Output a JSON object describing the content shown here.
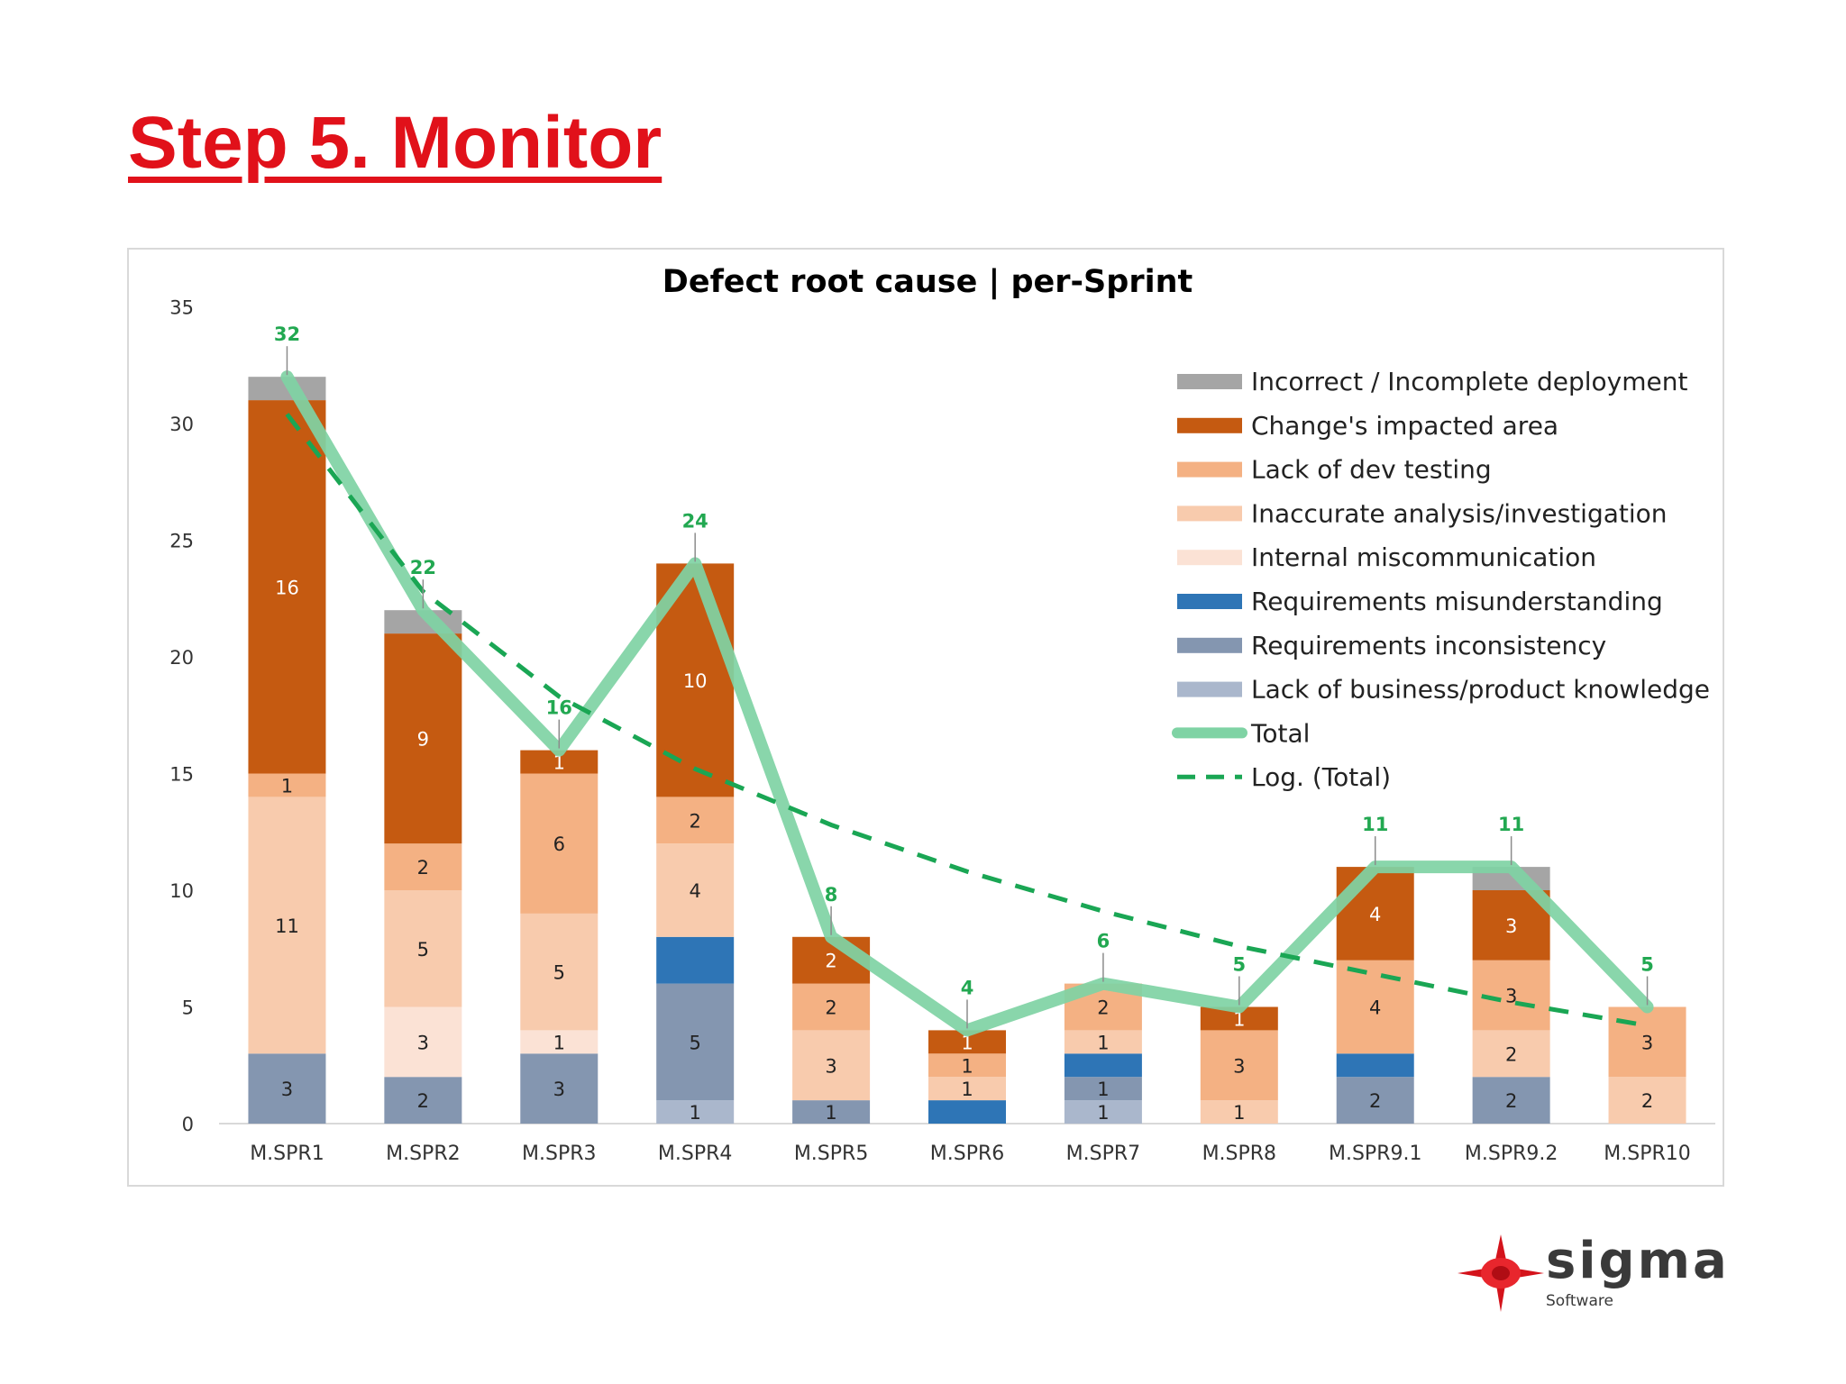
{
  "slide": {
    "title": "Step 5. Monitor"
  },
  "logo": {
    "word": "sigma",
    "sub": "Software"
  },
  "colors": {
    "title": "#e1111a",
    "total_line": "#7fd3a4",
    "trend_line": "#1aa654",
    "total_label": "#22a851"
  },
  "chart_data": {
    "type": "bar",
    "stacked": true,
    "title": "Defect root cause | per-Sprint",
    "xlabel": "",
    "ylabel": "",
    "ylim": [
      0,
      35
    ],
    "yticks": [
      "0",
      "5",
      "10",
      "15",
      "20",
      "25",
      "30",
      "35"
    ],
    "categories": [
      "M.SPR1",
      "M.SPR2",
      "M.SPR3",
      "M.SPR4",
      "M.SPR5",
      "M.SPR6",
      "M.SPR7",
      "M.SPR8",
      "M.SPR9.1",
      "M.SPR9.2",
      "M.SPR10"
    ],
    "series": [
      {
        "name": "Lack of business/product knowledge",
        "color": "#aab7cc",
        "values": [
          0,
          0,
          0,
          1,
          0,
          0,
          1,
          0,
          0,
          0,
          0
        ]
      },
      {
        "name": "Requirements inconsistency",
        "color": "#8496b0",
        "values": [
          3,
          2,
          3,
          5,
          1,
          0,
          1,
          0,
          2,
          2,
          0
        ]
      },
      {
        "name": "Requirements misunderstanding",
        "color": "#2e75b6",
        "values": [
          0,
          0,
          0,
          2,
          0,
          1,
          1,
          0,
          1,
          0,
          0
        ]
      },
      {
        "name": "Internal miscommunication",
        "color": "#fbe2d5",
        "values": [
          0,
          3,
          1,
          0,
          0,
          0,
          0,
          0,
          0,
          0,
          0
        ]
      },
      {
        "name": "Inaccurate analysis/investigation",
        "color": "#f8cbad",
        "values": [
          11,
          5,
          5,
          4,
          3,
          1,
          1,
          1,
          0,
          2,
          2
        ]
      },
      {
        "name": "Lack of dev testing",
        "color": "#f4b183",
        "values": [
          1,
          2,
          6,
          2,
          2,
          1,
          2,
          3,
          4,
          3,
          3
        ]
      },
      {
        "name": "Change's impacted area",
        "color": "#c55a11",
        "values": [
          16,
          9,
          1,
          10,
          2,
          1,
          0,
          1,
          4,
          3,
          0
        ]
      },
      {
        "name": "Incorrect / Incomplete deployment",
        "color": "#a5a5a5",
        "values": [
          1,
          1,
          0,
          0,
          0,
          0,
          0,
          0,
          0,
          1,
          0
        ]
      }
    ],
    "segment_labels": [
      [
        "",
        "3",
        "",
        "",
        "11",
        "1",
        "16",
        ""
      ],
      [
        "",
        "2",
        "",
        "3",
        "5",
        "2",
        "9",
        ""
      ],
      [
        "",
        "3",
        "",
        "1",
        "5",
        "6",
        "1",
        ""
      ],
      [
        "1",
        "5",
        "",
        "",
        "4",
        "2",
        "10",
        ""
      ],
      [
        "",
        "1",
        "",
        "",
        "3",
        "2",
        "2",
        ""
      ],
      [
        "",
        "",
        "",
        "",
        "1",
        "1",
        "1",
        ""
      ],
      [
        "1",
        "1",
        "",
        "",
        "1",
        "2",
        "",
        ""
      ],
      [
        "",
        "",
        "",
        "",
        "1",
        "3",
        "1",
        ""
      ],
      [
        "",
        "2",
        "",
        "",
        "",
        "4",
        "4",
        ""
      ],
      [
        "",
        "2",
        "",
        "",
        "2",
        "3",
        "3",
        ""
      ],
      [
        "",
        "",
        "",
        "",
        "2",
        "3",
        "",
        ""
      ]
    ],
    "total": {
      "name": "Total",
      "values": [
        32,
        22,
        16,
        24,
        8,
        4,
        6,
        5,
        11,
        11,
        5
      ]
    },
    "total_labels": [
      "32",
      "22",
      "16",
      "24",
      "8",
      "4",
      "6",
      "5",
      "11",
      "11",
      "5"
    ],
    "trend": {
      "name": "Log. (Total)",
      "type": "logarithmic",
      "values": [
        30.4,
        22.8,
        18.3,
        15.2,
        12.8,
        10.8,
        9.1,
        7.6,
        6.4,
        5.2,
        4.2
      ]
    },
    "legend": [
      {
        "label": "Incorrect / Incomplete deployment",
        "kind": "box",
        "color": "#a5a5a5"
      },
      {
        "label": "Change's impacted area",
        "kind": "box",
        "color": "#c55a11"
      },
      {
        "label": "Lack of dev testing",
        "kind": "box",
        "color": "#f4b183"
      },
      {
        "label": "Inaccurate analysis/investigation",
        "kind": "box",
        "color": "#f8cbad"
      },
      {
        "label": "Internal miscommunication",
        "kind": "box",
        "color": "#fbe2d5"
      },
      {
        "label": "Requirements misunderstanding",
        "kind": "box",
        "color": "#2e75b6"
      },
      {
        "label": "Requirements inconsistency",
        "kind": "box",
        "color": "#8496b0"
      },
      {
        "label": "Lack of business/product knowledge",
        "kind": "box",
        "color": "#aab7cc"
      },
      {
        "label": "Total",
        "kind": "line",
        "color": "#7fd3a4"
      },
      {
        "label": "Log. (Total)",
        "kind": "dash",
        "color": "#1aa654"
      }
    ],
    "legend_position": "top-right"
  }
}
